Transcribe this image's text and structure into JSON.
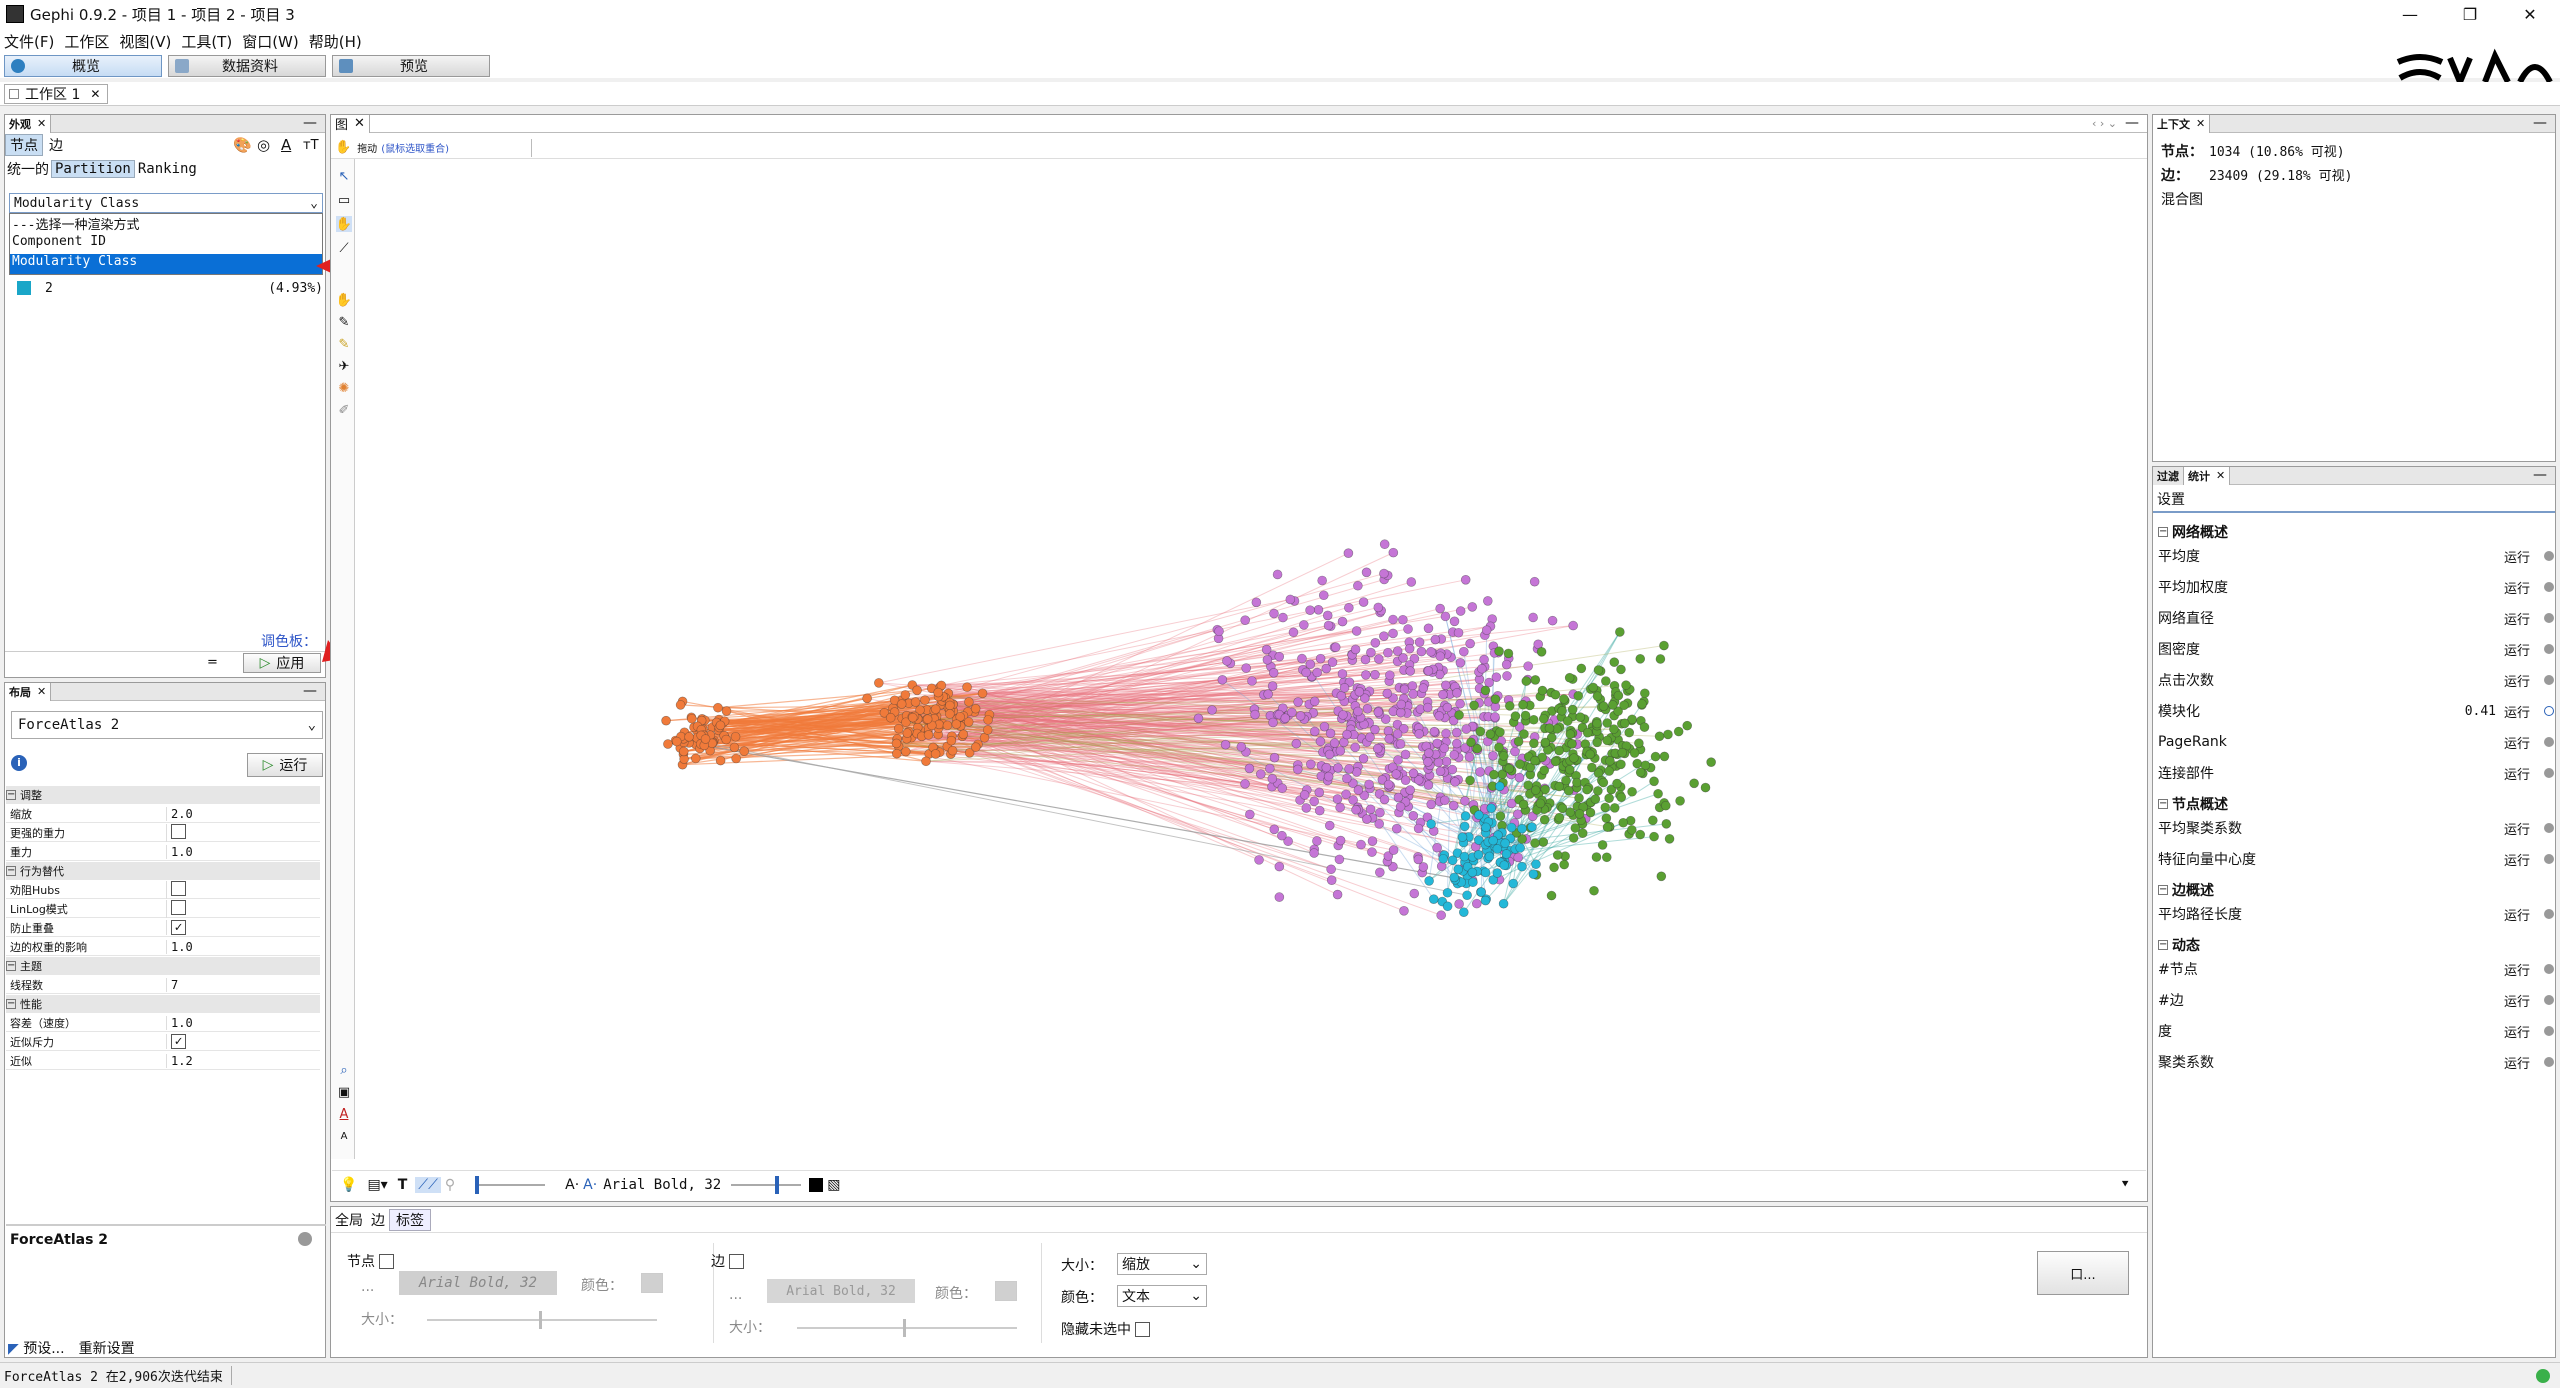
{
  "app": {
    "title": "Gephi 0.9.2 - 项目 1 - 项目 2 - 项目 3",
    "menu": [
      "文件(F)",
      "工作区",
      "视图(V)",
      "工具(T)",
      "窗口(W)",
      "帮助(H)"
    ],
    "main_tabs": [
      "概览",
      "数据资料",
      "预览"
    ],
    "workspace_tab": "工作区 1"
  },
  "appearance": {
    "panel_title": "外观",
    "subtabs": [
      "节点",
      "边"
    ],
    "mode_tabs": [
      "统一的",
      "Partition",
      "Ranking"
    ],
    "dropdown_value": "Modularity Class",
    "dropdown_options": [
      "---选择一种渲染方式",
      "Component ID",
      "Modularity Class"
    ],
    "partition_item": {
      "label": "2",
      "percent": "(4.93%)",
      "color": "#1aa6c8"
    },
    "palette_label": "调色板：",
    "palette_eq": "=",
    "apply_label": "应用"
  },
  "layout": {
    "panel_title": "布局",
    "algorithm": "ForceAtlas 2",
    "run_label": "运行",
    "sections": [
      {
        "title": "调整",
        "props": [
          {
            "k": "缩放",
            "v": "2.0"
          },
          {
            "k": "更强的重力",
            "v": "checkbox-off"
          },
          {
            "k": "重力",
            "v": "1.0"
          }
        ]
      },
      {
        "title": "行为替代",
        "props": [
          {
            "k": "劝阻Hubs",
            "v": "checkbox-off"
          },
          {
            "k": "LinLog模式",
            "v": "checkbox-off"
          },
          {
            "k": "防止重叠",
            "v": "checkbox-on"
          },
          {
            "k": "边的权重的影响",
            "v": "1.0"
          }
        ]
      },
      {
        "title": "主题",
        "props": [
          {
            "k": "线程数",
            "v": "7"
          }
        ]
      },
      {
        "title": "性能",
        "props": [
          {
            "k": "容差（速度）",
            "v": "1.0"
          },
          {
            "k": "近似斥力",
            "v": "checkbox-on"
          },
          {
            "k": "近似",
            "v": "1.2"
          }
        ]
      }
    ],
    "description_title": "ForceAtlas 2",
    "preset_label": "预设...",
    "reset_label": "重新设置"
  },
  "graph": {
    "panel_title": "图",
    "drag_label": "拖动",
    "drag_hint": "(鼠标选取重合)",
    "font_label": "Arial Bold, 32",
    "clusters": {
      "orange": "#f07a3a",
      "purple": "#c575d6",
      "green": "#5aa032",
      "cyan": "#23b8d8"
    }
  },
  "bottom": {
    "tabs": [
      "全局",
      "边",
      "标签"
    ],
    "node_label": "节点",
    "edge_label": "边",
    "font_node": "Arial Bold, 32",
    "font_edge": "Arial Bold, 32",
    "color_label": "颜色：",
    "size_label": "大小：",
    "ellipsis": "...",
    "size_select_label": "大小：",
    "size_select_value": "缩放",
    "color_select_label": "颜色：",
    "color_select_value": "文本",
    "hide_unselected": "隐藏未选中",
    "more_button": "口..."
  },
  "context": {
    "panel_title": "上下文",
    "nodes_label": "节点：",
    "nodes_value": "1034 (10.86% 可视)",
    "edges_label": "边：",
    "edges_value": "23409 (29.18% 可视)",
    "graph_type": "混合图"
  },
  "statistics": {
    "tabs": [
      "过滤",
      "统计"
    ],
    "settings_label": "设置",
    "run_label": "运行",
    "groups": [
      {
        "title": "网络概述",
        "items": [
          {
            "name": "平均度",
            "val": ""
          },
          {
            "name": "平均加权度",
            "val": ""
          },
          {
            "name": "网络直径",
            "val": ""
          },
          {
            "name": "图密度",
            "val": ""
          },
          {
            "name": "点击次数",
            "val": ""
          },
          {
            "name": "模块化",
            "val": "0.41"
          },
          {
            "name": "PageRank",
            "val": ""
          },
          {
            "name": "连接部件",
            "val": ""
          }
        ]
      },
      {
        "title": "节点概述",
        "items": [
          {
            "name": "平均聚类系数",
            "val": ""
          },
          {
            "name": "特征向量中心度",
            "val": ""
          }
        ]
      },
      {
        "title": "边概述",
        "items": [
          {
            "name": "平均路径长度",
            "val": ""
          }
        ]
      },
      {
        "title": "动态",
        "items": [
          {
            "name": "#节点",
            "val": ""
          },
          {
            "name": "#边",
            "val": ""
          },
          {
            "name": "度",
            "val": ""
          },
          {
            "name": "聚类系数",
            "val": ""
          }
        ]
      }
    ]
  },
  "status": {
    "text": "ForceAtlas 2 在2,906次迭代结束"
  }
}
